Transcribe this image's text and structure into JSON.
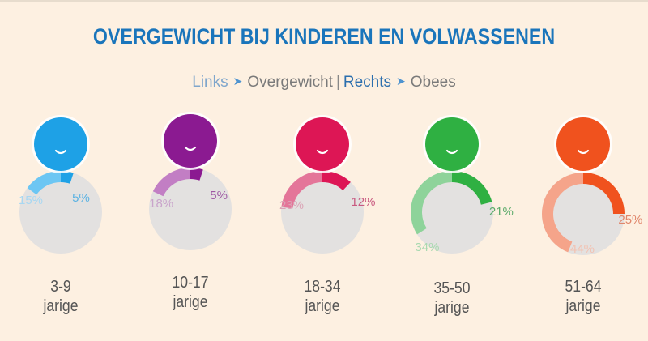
{
  "title": "OVERGEWICHT BIJ KINDEREN EN VOLWASSENEN",
  "legend": {
    "left_label": "Links",
    "left_meaning": "Overgewicht",
    "separator": "|",
    "right_label": "Rechts",
    "right_meaning": "Obees",
    "arrow_icon": "arrow-right-icon"
  },
  "chart_data": {
    "type": "pie",
    "title": "OVERGEWICHT BIJ KINDEREN EN VOLWASSENEN",
    "legend": [
      "Links: Overgewicht",
      "Rechts: Obees"
    ],
    "categories": [
      "3-9 jarige",
      "10-17 jarige",
      "18-34 jarige",
      "35-50 jarige",
      "51-64 jarige"
    ],
    "series": [
      {
        "name": "Overgewicht",
        "values": [
          15,
          18,
          23,
          34,
          44
        ]
      },
      {
        "name": "Obees",
        "values": [
          5,
          5,
          12,
          21,
          25
        ]
      }
    ],
    "groups": [
      {
        "age": "3-9",
        "unit": "jarige",
        "overweight": 15,
        "obese": 5,
        "overweight_label": "15%",
        "obese_label": "5%",
        "color": "#1ea1e6",
        "light": "#6cc6f3",
        "label_color": "#5ab2e3",
        "ol_color": "#a8d7f2"
      },
      {
        "age": "10-17",
        "unit": "jarige",
        "overweight": 18,
        "obese": 5,
        "overweight_label": "18%",
        "obese_label": "5%",
        "color": "#8b1a91",
        "light": "#c27ec4",
        "label_color": "#9f5aa3",
        "ol_color": "#c9a4cb"
      },
      {
        "age": "18-34",
        "unit": "jarige",
        "overweight": 23,
        "obese": 12,
        "overweight_label": "23%",
        "obese_label": "12%",
        "color": "#dd1655",
        "light": "#e47599",
        "label_color": "#c95a80",
        "ol_color": "#dba4b6"
      },
      {
        "age": "35-50",
        "unit": "jarige",
        "overweight": 34,
        "obese": 21,
        "overweight_label": "34%",
        "obese_label": "21%",
        "color": "#2fb042",
        "light": "#8ed39a",
        "label_color": "#5cab6b",
        "ol_color": "#a9d9b0"
      },
      {
        "age": "51-64",
        "unit": "jarige",
        "overweight": 44,
        "obese": 25,
        "overweight_label": "44%",
        "obese_label": "25%",
        "color": "#f0521e",
        "light": "#f5a48a",
        "label_color": "#e0866b",
        "ol_color": "#f2c2b2"
      }
    ]
  }
}
